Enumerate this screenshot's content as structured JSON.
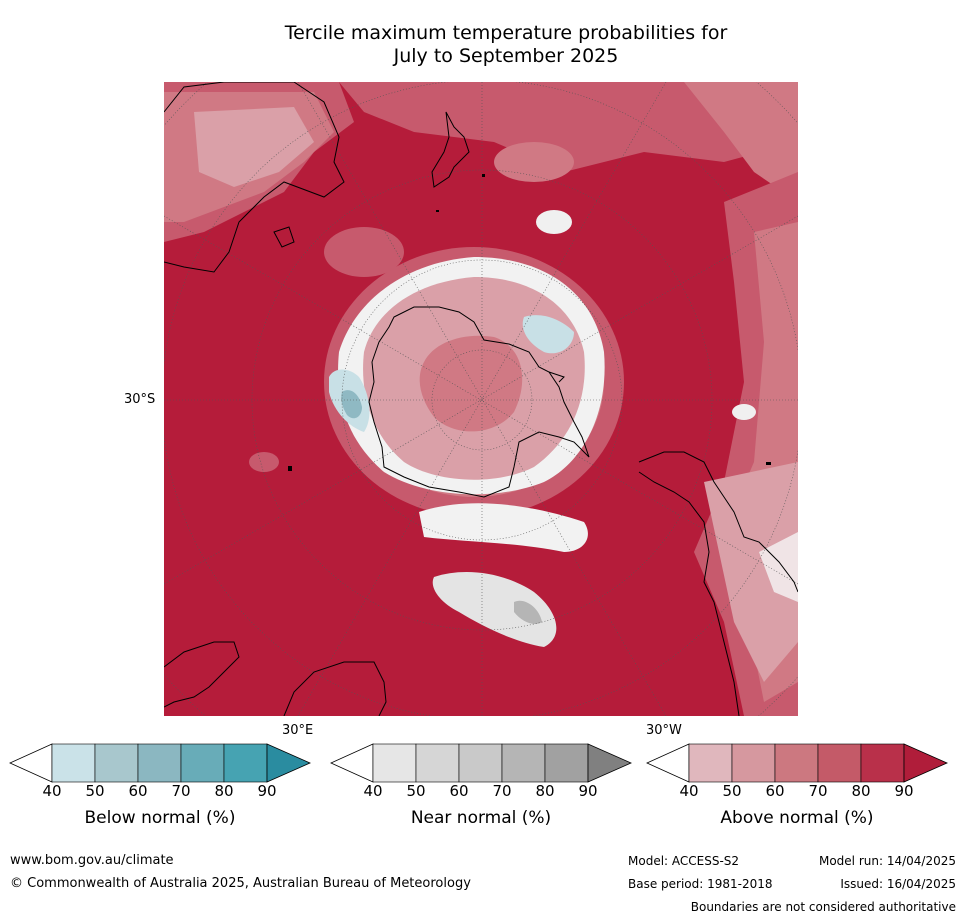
{
  "title_line1": "Tercile maximum temperature probabilities for",
  "title_line2": "July to September 2025",
  "map": {
    "lat_label": "30°S",
    "lon_label_e": "30°E",
    "lon_label_w": "30°W",
    "colors": {
      "background_max": "#b51c3a",
      "above_70": "#c75a6d",
      "above_60": "#d07984",
      "above_50": "#daa0a8",
      "near_white": "#f4f4f4",
      "below_50": "#c8e0e6",
      "below_60": "#8fb9c3",
      "near_grey": "#b5b5b5",
      "coastline": "#000000"
    }
  },
  "colorbars": [
    {
      "name": "below",
      "label": "Below normal (%)",
      "ticks": [
        "40",
        "50",
        "60",
        "70",
        "80",
        "90"
      ],
      "colors": [
        "#ffffff",
        "#cae2e8",
        "#a8c7cd",
        "#8bb7c1",
        "#68acb8",
        "#46a3b2",
        "#2a8ca0"
      ]
    },
    {
      "name": "near",
      "label": "Near normal (%)",
      "ticks": [
        "40",
        "50",
        "60",
        "70",
        "80",
        "90"
      ],
      "colors": [
        "#ffffff",
        "#e6e6e6",
        "#d6d6d6",
        "#c9c9c9",
        "#b5b5b5",
        "#a1a1a1",
        "#808080"
      ]
    },
    {
      "name": "above",
      "label": "Above normal (%)",
      "ticks": [
        "40",
        "50",
        "60",
        "70",
        "80",
        "90"
      ],
      "colors": [
        "#ffffff",
        "#e0b7bd",
        "#d6989f",
        "#cc7880",
        "#c45a68",
        "#b9304a",
        "#b01d3a"
      ]
    }
  ],
  "footer": {
    "website": "www.bom.gov.au/climate",
    "copyright": "© Commonwealth of Australia 2025, Australian Bureau of Meteorology",
    "model": "Model: ACCESS-S2",
    "model_run": "Model run: 14/04/2025",
    "base_period": "Base period: 1981-2018",
    "issued": "Issued: 16/04/2025",
    "disclaimer": "Boundaries are not considered authoritative"
  }
}
